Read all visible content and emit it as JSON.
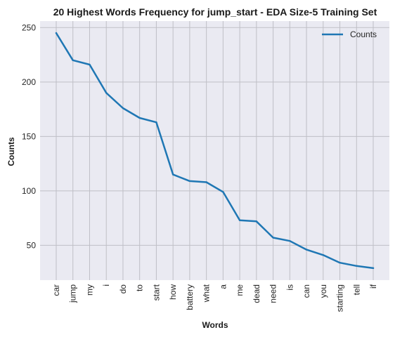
{
  "chart_data": {
    "type": "line",
    "title": "20 Highest Words Frequency for jump_start - EDA Size-5 Training Set",
    "xlabel": "Words",
    "ylabel": "Counts",
    "categories": [
      "car",
      "jump",
      "my",
      "i",
      "do",
      "to",
      "start",
      "how",
      "battery",
      "what",
      "a",
      "me",
      "dead",
      "need",
      "is",
      "can",
      "you",
      "starting",
      "tell",
      "if"
    ],
    "series": [
      {
        "name": "Counts",
        "color": "#1f77b4",
        "values": [
          245,
          220,
          216,
          190,
          176,
          167,
          163,
          115,
          109,
          108,
          99,
          73,
          72,
          57,
          54,
          46,
          41,
          34,
          31,
          29
        ]
      }
    ],
    "y_ticks": [
      50,
      100,
      150,
      200,
      250
    ],
    "ylim": [
      18,
      256
    ],
    "grid": true,
    "legend_position": "top-right",
    "plot_background": "#eaeaf2",
    "grid_color": "#bfbfc6"
  }
}
